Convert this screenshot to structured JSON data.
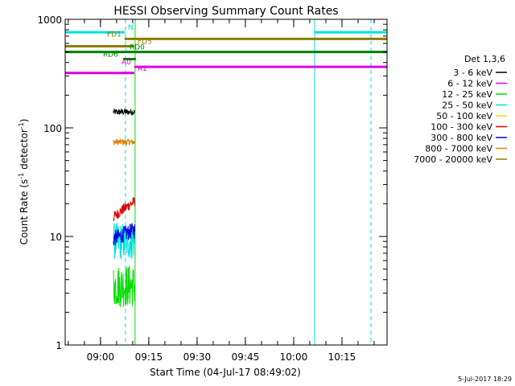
{
  "chart_data": {
    "type": "line",
    "title": "HESSI Observing Summary Count Rates",
    "xlabel": "Start Time (04-Jul-17 08:49:02)",
    "ylabel_main": "Count Rate (s",
    "ylabel_sup1": "-1",
    "ylabel_mid": " detector",
    "ylabel_sup2": "-1",
    "ylabel_end": ")",
    "timestamp": "5-Jul-2017 18:29",
    "y_scale": "log",
    "ylim": [
      1,
      1000
    ],
    "xlim": [
      "08:49:02",
      "10:29:00"
    ],
    "x_ticks": [
      "09:00",
      "09:15",
      "09:30",
      "09:45",
      "10:00",
      "10:15"
    ],
    "y_ticks": [
      "1",
      "10",
      "100",
      "1000"
    ],
    "legend": {
      "title": "Det 1,3,6",
      "position": "right",
      "entries": [
        {
          "label": "3 - 6 keV",
          "color": "#000000"
        },
        {
          "label": "6 - 12 keV",
          "color": "#e000e0"
        },
        {
          "label": "12 - 25 keV",
          "color": "#00dd00"
        },
        {
          "label": "25 - 50 keV",
          "color": "#00e0e0"
        },
        {
          "label": "50 - 100 keV",
          "color": "#e0e000"
        },
        {
          "label": "100 - 300 keV",
          "color": "#e00000"
        },
        {
          "label": "300 - 800 keV",
          "color": "#0000e0"
        },
        {
          "label": "800 - 7000 keV",
          "color": "#e08000"
        },
        {
          "label": "7000 - 20000 keV",
          "color": "#8b7d00"
        }
      ]
    },
    "flag_bars": [
      {
        "label": "N",
        "value": 760,
        "color": "#00e0e0",
        "segments": [
          [
            "08:49:02",
            "09:07:30"
          ],
          [
            "10:06:30",
            "10:29:00"
          ]
        ],
        "label_at": "09:08:00",
        "label_side": "right"
      },
      {
        "label": "FD1",
        "value": 660,
        "color": "#8b7d00",
        "segments": [
          [
            "09:07:30",
            "10:29:00"
          ]
        ],
        "label_at": "09:07:00",
        "label_side": "left"
      },
      {
        "label": "FD5",
        "value": 565,
        "color": "#8b7d00",
        "segments": [
          [
            "08:49:02",
            "09:10:30"
          ]
        ],
        "label_at": "09:11:00",
        "label_side": "right"
      },
      {
        "label": "RD0",
        "value": 500,
        "color": "#008000",
        "segments": [
          [
            "08:49:02",
            "10:29:00"
          ]
        ],
        "label_at": "09:08:30",
        "label_side": "right"
      },
      {
        "label": "RD6",
        "value": 430,
        "color": "#008000",
        "segments": [
          [
            "09:07:00",
            "09:11:00"
          ]
        ],
        "label_at": "09:06:00",
        "label_side": "left"
      },
      {
        "label": "A0",
        "value": 365,
        "color": "#e000e0",
        "segments": [
          [
            "09:10:30",
            "10:29:00"
          ]
        ],
        "label_at": "09:10:00",
        "label_side": "left"
      },
      {
        "label": "A1",
        "value": 320,
        "color": "#e000e0",
        "segments": [
          [
            "08:49:02",
            "09:10:30"
          ]
        ],
        "label_at": "09:11:00",
        "label_side": "right"
      }
    ],
    "vertical_lines": [
      {
        "time": "08:49:02",
        "color": "#00e0e0",
        "style": "solid"
      },
      {
        "time": "09:07:45",
        "color": "#00e0e0",
        "style": "dashed"
      },
      {
        "time": "09:10:45",
        "color": "#00e000",
        "style": "solid"
      },
      {
        "time": "10:06:30",
        "color": "#00e0e0",
        "style": "solid"
      },
      {
        "time": "10:24:00",
        "color": "#00e0e0",
        "style": "dashed"
      }
    ],
    "data_window": [
      "09:04:00",
      "09:10:40"
    ],
    "series": [
      {
        "name": "3 - 6 keV",
        "color": "#000000",
        "level": 140,
        "spread": 0.06
      },
      {
        "name": "800 - 7000 keV",
        "color": "#e08000",
        "level": 74,
        "spread": 0.06
      },
      {
        "name": "100 - 300 keV",
        "color": "#e00000",
        "start": 15,
        "end": 21,
        "spread": 0.1
      },
      {
        "name": "25 - 50 keV",
        "color": "#00e0e0",
        "level": 9,
        "spread": 0.35
      },
      {
        "name": "300 - 800 keV",
        "color": "#0000e0",
        "start": 9.5,
        "end": 11.5,
        "spread": 0.15
      },
      {
        "name": "12 - 25 keV",
        "color": "#00dd00",
        "level": 3.5,
        "spread": 0.4
      }
    ]
  }
}
